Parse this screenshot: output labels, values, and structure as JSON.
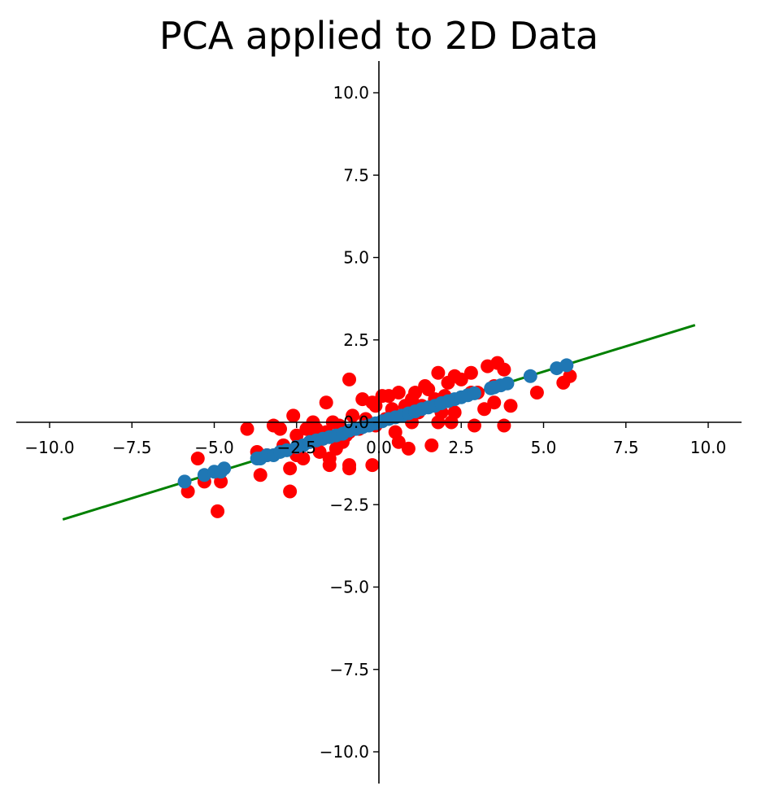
{
  "chart_data": {
    "type": "scatter",
    "title": "PCA applied to 2D Data",
    "xlabel": "",
    "ylabel": "",
    "xlim": [
      -11,
      11
    ],
    "ylim": [
      -11,
      11
    ],
    "grid": false,
    "legend": null,
    "x_ticks": [
      "−10.0",
      "−7.5",
      "−5.0",
      "−2.5",
      "0.0",
      "2.5",
      "5.0",
      "7.5",
      "10.0"
    ],
    "y_ticks": [
      "10.0",
      "7.5",
      "5.0",
      "2.5",
      "0.0",
      "−2.5",
      "−5.0",
      "−7.5",
      "−10.0"
    ],
    "x_tick_values": [
      -10,
      -7.5,
      -5,
      -2.5,
      0,
      2.5,
      5,
      7.5,
      10
    ],
    "y_tick_values": [
      10,
      7.5,
      5,
      2.5,
      0,
      -2.5,
      -5,
      -7.5,
      -10
    ],
    "colors": {
      "original": "#ff0000",
      "projected": "#1f77b4",
      "component_line": "#008000"
    },
    "component_line": {
      "x": [
        -9.6,
        9.6
      ],
      "y": [
        -2.95,
        2.95
      ]
    },
    "series": [
      {
        "color": "#ff0000",
        "points": [
          [
            5.8,
            1.4
          ],
          [
            5.6,
            1.2
          ],
          [
            4.8,
            0.9
          ],
          [
            4.0,
            0.5
          ],
          [
            3.8,
            -0.1
          ],
          [
            3.8,
            1.6
          ],
          [
            3.6,
            1.8
          ],
          [
            3.5,
            0.6
          ],
          [
            3.5,
            1.1
          ],
          [
            3.3,
            1.7
          ],
          [
            3.2,
            0.4
          ],
          [
            3.0,
            0.9
          ],
          [
            2.9,
            -0.1
          ],
          [
            2.8,
            0.9
          ],
          [
            2.8,
            1.5
          ],
          [
            2.5,
            1.3
          ],
          [
            2.3,
            1.4
          ],
          [
            2.3,
            0.3
          ],
          [
            2.2,
            0.0
          ],
          [
            2.1,
            1.2
          ],
          [
            2.0,
            0.8
          ],
          [
            1.9,
            0.3
          ],
          [
            1.8,
            1.5
          ],
          [
            1.8,
            0.0
          ],
          [
            1.7,
            0.7
          ],
          [
            1.6,
            -0.7
          ],
          [
            1.5,
            1.0
          ],
          [
            1.4,
            1.1
          ],
          [
            1.3,
            0.5
          ],
          [
            1.2,
            0.3
          ],
          [
            1.1,
            0.9
          ],
          [
            1.0,
            0.0
          ],
          [
            1.0,
            0.7
          ],
          [
            0.9,
            -0.8
          ],
          [
            0.8,
            0.5
          ],
          [
            0.7,
            0.2
          ],
          [
            0.6,
            0.9
          ],
          [
            0.6,
            -0.6
          ],
          [
            0.5,
            -0.3
          ],
          [
            0.4,
            0.4
          ],
          [
            0.3,
            0.8
          ],
          [
            0.2,
            0.1
          ],
          [
            0.1,
            0.8
          ],
          [
            -0.1,
            0.5
          ],
          [
            -0.1,
            -0.1
          ],
          [
            -0.2,
            0.6
          ],
          [
            -0.2,
            -1.3
          ],
          [
            -0.4,
            0.1
          ],
          [
            -0.5,
            0.7
          ],
          [
            -0.6,
            -0.2
          ],
          [
            -0.8,
            0.2
          ],
          [
            -0.9,
            -0.3
          ],
          [
            -0.9,
            -1.3
          ],
          [
            -0.9,
            -1.4
          ],
          [
            -0.9,
            1.3
          ],
          [
            -1.0,
            -0.4
          ],
          [
            -1.1,
            -0.6
          ],
          [
            -1.2,
            -0.1
          ],
          [
            -1.3,
            -0.8
          ],
          [
            -1.4,
            0.0
          ],
          [
            -1.5,
            -1.1
          ],
          [
            -1.5,
            -1.3
          ],
          [
            -1.6,
            -0.3
          ],
          [
            -1.6,
            0.6
          ],
          [
            -1.7,
            -0.5
          ],
          [
            -1.8,
            -0.9
          ],
          [
            -1.9,
            -0.2
          ],
          [
            -2.0,
            0.0
          ],
          [
            -2.0,
            -0.4
          ],
          [
            -2.1,
            -0.6
          ],
          [
            -2.2,
            -0.2
          ],
          [
            -2.3,
            -1.1
          ],
          [
            -2.5,
            -0.4
          ],
          [
            -2.5,
            -1.0
          ],
          [
            -2.6,
            0.2
          ],
          [
            -2.7,
            -2.1
          ],
          [
            -2.7,
            -1.4
          ],
          [
            -2.9,
            -0.7
          ],
          [
            -3.0,
            -0.2
          ],
          [
            -3.2,
            -0.1
          ],
          [
            -3.4,
            -1.0
          ],
          [
            -3.6,
            -1.6
          ],
          [
            -3.7,
            -0.9
          ],
          [
            -4.0,
            -0.2
          ],
          [
            -4.8,
            -1.8
          ],
          [
            -4.9,
            -2.7
          ],
          [
            -5.3,
            -1.8
          ],
          [
            -5.5,
            -1.1
          ],
          [
            -5.8,
            -2.1
          ]
        ]
      },
      {
        "color": "#1f77b4",
        "points": [
          [
            -5.9,
            -1.8
          ],
          [
            -5.3,
            -1.6
          ],
          [
            -5.0,
            -1.5
          ],
          [
            -4.8,
            -1.5
          ],
          [
            -4.7,
            -1.4
          ],
          [
            -3.7,
            -1.1
          ],
          [
            -3.6,
            -1.1
          ],
          [
            -3.4,
            -1.0
          ],
          [
            -3.2,
            -1.0
          ],
          [
            -3.0,
            -0.9
          ],
          [
            -2.8,
            -0.85
          ],
          [
            -2.5,
            -0.75
          ],
          [
            -2.3,
            -0.7
          ],
          [
            -2.1,
            -0.6
          ],
          [
            -1.9,
            -0.55
          ],
          [
            -1.7,
            -0.5
          ],
          [
            -1.5,
            -0.45
          ],
          [
            -1.3,
            -0.4
          ],
          [
            -1.1,
            -0.35
          ],
          [
            -0.9,
            -0.25
          ],
          [
            -0.7,
            -0.2
          ],
          [
            -0.5,
            -0.15
          ],
          [
            -0.3,
            -0.1
          ],
          [
            -0.1,
            -0.03
          ],
          [
            0.1,
            0.03
          ],
          [
            0.3,
            0.1
          ],
          [
            0.5,
            0.15
          ],
          [
            0.7,
            0.2
          ],
          [
            0.9,
            0.27
          ],
          [
            1.1,
            0.33
          ],
          [
            1.3,
            0.4
          ],
          [
            1.5,
            0.45
          ],
          [
            1.7,
            0.5
          ],
          [
            1.9,
            0.58
          ],
          [
            2.1,
            0.64
          ],
          [
            2.3,
            0.7
          ],
          [
            2.5,
            0.76
          ],
          [
            2.7,
            0.82
          ],
          [
            2.9,
            0.88
          ],
          [
            3.4,
            1.03
          ],
          [
            3.5,
            1.06
          ],
          [
            3.7,
            1.12
          ],
          [
            3.9,
            1.18
          ],
          [
            4.6,
            1.4
          ],
          [
            5.4,
            1.64
          ],
          [
            5.7,
            1.73
          ]
        ]
      }
    ]
  }
}
